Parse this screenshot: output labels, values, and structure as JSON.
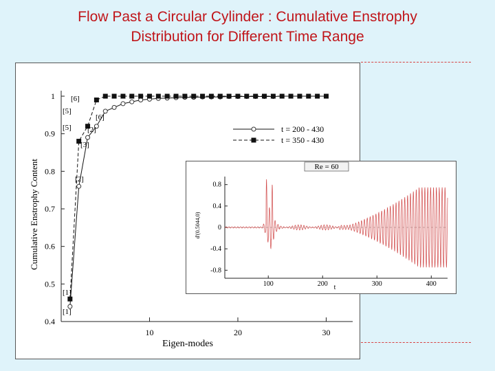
{
  "slide": {
    "title_line1": "Flow Past a Circular Cylinder : Cumulative Enstrophy",
    "title_line2": "Distribution for Different Time Range"
  },
  "colors": {
    "title": "#c0151a",
    "background": "#dff3fa",
    "signal": "#d04848",
    "dashes": "#d84040"
  },
  "chart_data": [
    {
      "type": "line",
      "xlabel": "Eigen-modes",
      "ylabel": "Cumulative Enstrophy Content",
      "xlim": [
        0,
        33
      ],
      "ylim": [
        0.4,
        1.0
      ],
      "xticks": [
        "10",
        "20",
        "30"
      ],
      "yticks": [
        "0.4",
        "0.5",
        "0.6",
        "0.7",
        "0.8",
        "0.9",
        "1"
      ],
      "grid": false,
      "legend_position": "right",
      "series": [
        {
          "name": "t = 200 - 430",
          "marker": "open-circle",
          "line": "solid",
          "x": [
            1,
            2,
            3,
            4,
            5,
            6,
            7,
            8,
            9,
            10,
            11,
            12,
            13,
            14,
            15,
            16,
            17,
            18,
            19,
            20,
            21,
            22,
            23,
            24,
            25,
            26,
            27,
            28,
            29,
            30
          ],
          "y": [
            0.44,
            0.76,
            0.89,
            0.92,
            0.96,
            0.97,
            0.98,
            0.985,
            0.99,
            0.992,
            0.994,
            0.995,
            0.996,
            0.997,
            0.997,
            0.998,
            0.998,
            0.998,
            0.999,
            0.999,
            0.999,
            0.999,
            0.999,
            0.999,
            1.0,
            1.0,
            1.0,
            1.0,
            1.0,
            1.0
          ]
        },
        {
          "name": "t = 350 - 430",
          "marker": "filled-square",
          "line": "dashed",
          "x": [
            1,
            2,
            3,
            4,
            5,
            6,
            7,
            8,
            9,
            10,
            11,
            12,
            13,
            14,
            15,
            16,
            17,
            18,
            19,
            20,
            21,
            22,
            23,
            24,
            25,
            26,
            27,
            28,
            29,
            30
          ],
          "y": [
            0.46,
            0.88,
            0.92,
            0.99,
            1.0,
            1.0,
            1.0,
            1.0,
            1.0,
            1.0,
            1.0,
            1.0,
            1.0,
            1.0,
            1.0,
            1.0,
            1.0,
            1.0,
            1.0,
            1.0,
            1.0,
            1.0,
            1.0,
            1.0,
            1.0,
            1.0,
            1.0,
            1.0,
            1.0,
            1.0
          ]
        }
      ],
      "annotations": [
        {
          "text": "[6]",
          "series": "t = 350 - 430"
        },
        {
          "text": "[5]",
          "series": "t = 350 - 430"
        },
        {
          "text": "[2]",
          "series": "t = 350 - 430"
        },
        {
          "text": "[3]",
          "series": "t = 350 - 430"
        },
        {
          "text": "[6]",
          "series": "t = 200 - 430"
        },
        {
          "text": "[5]",
          "series": "t = 200 - 430"
        },
        {
          "text": "[2]",
          "series": "t = 200 - 430"
        },
        {
          "text": "[1]",
          "series": "t = 350 - 430"
        },
        {
          "text": "[1]",
          "series": "t = 200 - 430"
        }
      ]
    },
    {
      "type": "line",
      "title": "Re = 60",
      "xlabel": "t",
      "ylabel": "d'(0.5044,0)",
      "xlim": [
        20,
        430
      ],
      "ylim": [
        -0.95,
        0.95
      ],
      "xticks": [
        "100",
        "200",
        "300",
        "400"
      ],
      "yticks": [
        "0.8",
        "0.4",
        "0",
        "-0.4",
        "-0.8"
      ],
      "series": [
        {
          "name": "",
          "description_points": {
            "burst1": {
              "t": 97,
              "amp": 0.9
            },
            "burst2_start": 105,
            "burst2_peak": {
              "t": 107,
              "amp": 0.8
            },
            "growth_start": 230,
            "growth_end": 430,
            "final_amplitude": 0.75,
            "oscillation_period": 5.3
          }
        }
      ]
    }
  ]
}
